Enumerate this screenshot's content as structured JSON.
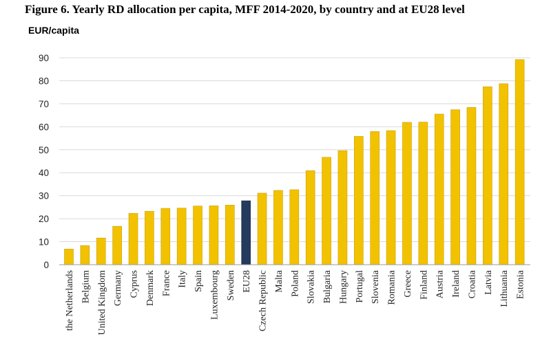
{
  "figure": {
    "title": "Figure 6. Yearly RD allocation per capita, MFF 2014-2020, by country and at EU28 level",
    "unit_label": "EUR/capita"
  },
  "colors": {
    "bar": "#f2c200",
    "bar_highlight": "#243a5e",
    "gridline": "#d9d9d9",
    "axis": "#999999"
  },
  "chart_data": {
    "type": "bar",
    "title": "Figure 6. Yearly RD allocation per capita, MFF 2014-2020, by country and at EU28 level",
    "xlabel": "",
    "ylabel": "EUR/capita",
    "ylim": [
      0,
      90
    ],
    "yticks": [
      0,
      10,
      20,
      30,
      40,
      50,
      60,
      70,
      80,
      90
    ],
    "grid": true,
    "highlight_category": "EU28",
    "categories": [
      "the Netherlands",
      "Belgium",
      "United Kingdom",
      "Germany",
      "Cyprus",
      "Denmark",
      "France",
      "Italy",
      "Spain",
      "Luxembourg",
      "Sweden",
      "EU28",
      "Czech Republic",
      "Malta",
      "Poland",
      "Slovakia",
      "Bulgaria",
      "Hungary",
      "Portugal",
      "Slovenia",
      "Romania",
      "Greece",
      "Finland",
      "Austria",
      "Ireland",
      "Croatia",
      "Latvia",
      "Lithuania",
      "Estonia"
    ],
    "values": [
      6.8,
      8.3,
      11.6,
      16.7,
      22.3,
      23.2,
      24.5,
      24.6,
      25.5,
      25.6,
      25.9,
      27.8,
      31.1,
      32.3,
      32.6,
      40.9,
      46.7,
      49.6,
      55.8,
      57.9,
      58.3,
      61.9,
      62.0,
      65.5,
      67.4,
      68.4,
      77.4,
      78.7,
      89.2
    ]
  }
}
